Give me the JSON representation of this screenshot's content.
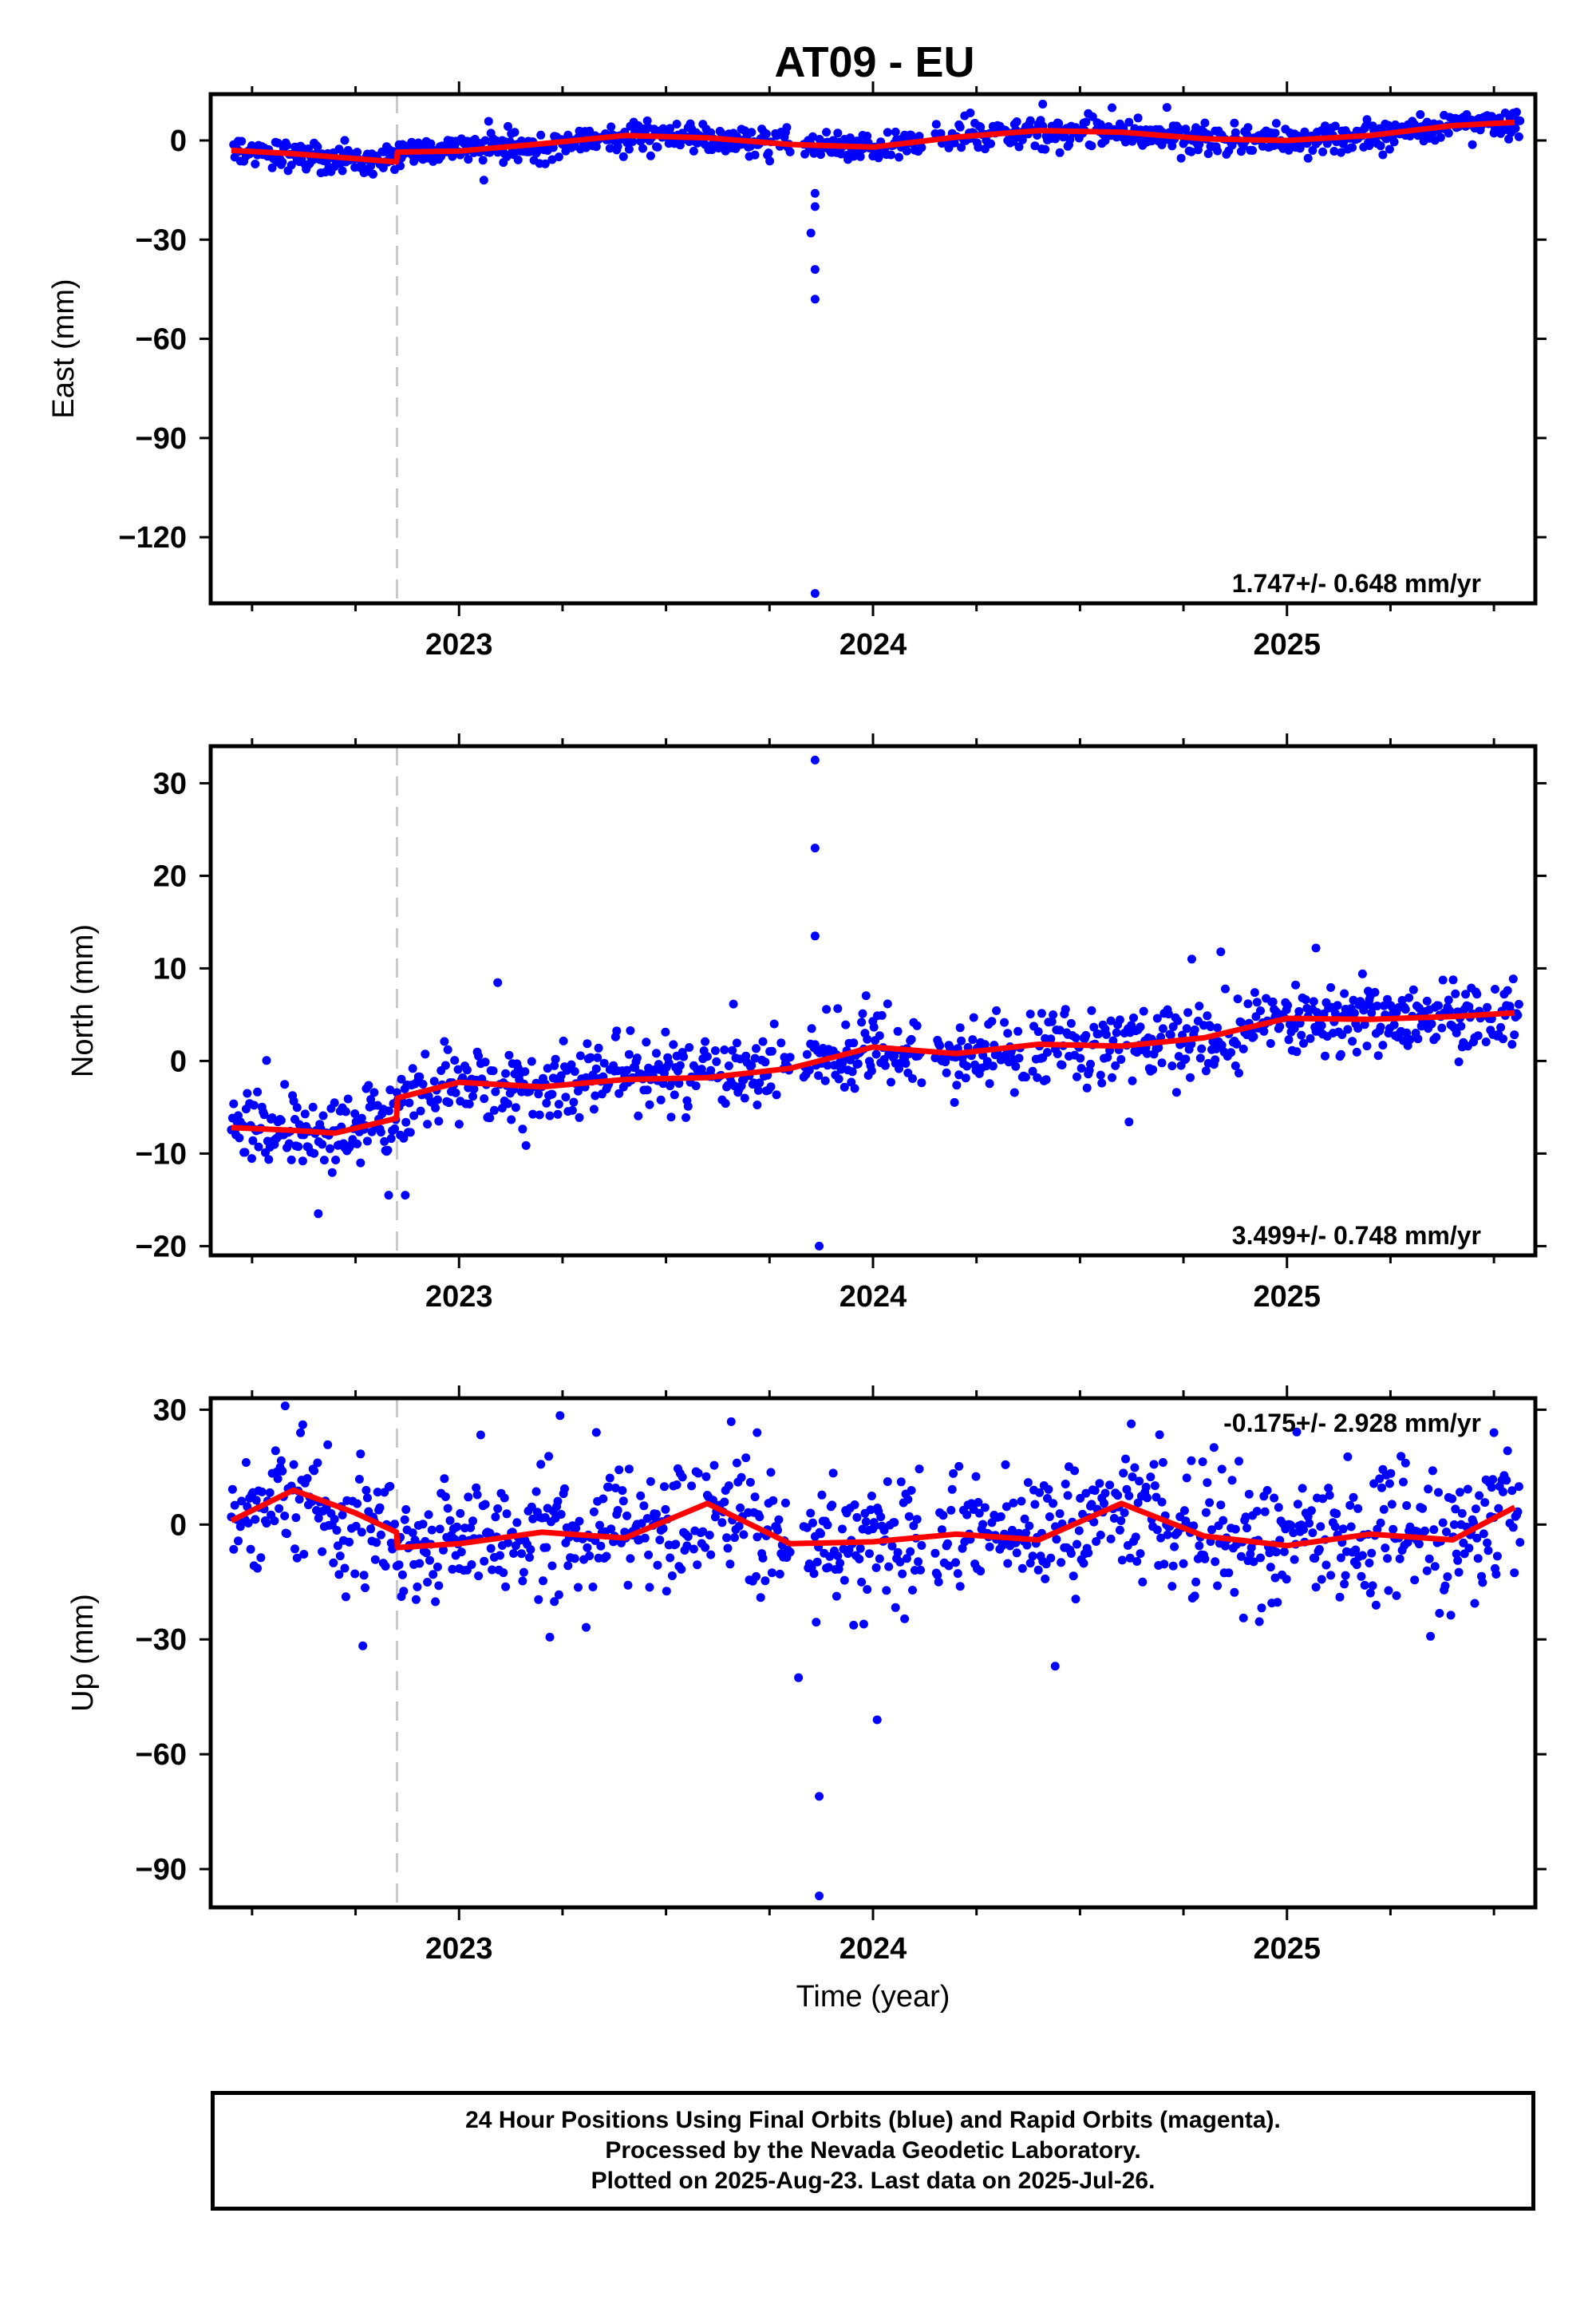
{
  "title": "AT09 - EU",
  "xlabel": "Time (year)",
  "colors": {
    "data": "#0000ff",
    "model": "#ff0000",
    "offset_line": "#c8c8c8",
    "frame": "#000000"
  },
  "chart_data": [
    {
      "type": "scatter",
      "component": "east",
      "ylabel": "East (mm)",
      "ylim": [
        -140,
        14
      ],
      "yticks": [
        0,
        -30,
        -60,
        -90,
        -120
      ],
      "ytick_labels": [
        "0",
        "−30",
        "−60",
        "−90",
        "−120"
      ],
      "xlim": [
        2022.4,
        2025.6
      ],
      "xticks": [
        2023,
        2024,
        2025
      ],
      "xtick_labels": [
        "2023",
        "2024",
        "2025"
      ],
      "velocity": "1.747+/- 0.648 mm/yr",
      "velocity_position": "bottom-right",
      "offset_epoch": 2022.85,
      "model_curve": {
        "x": [
          2022.45,
          2022.6,
          2022.75,
          2022.849,
          2022.851,
          2023.0,
          2023.2,
          2023.4,
          2023.6,
          2023.8,
          2024.0,
          2024.2,
          2024.4,
          2024.6,
          2024.8,
          2025.0,
          2025.2,
          2025.4,
          2025.55
        ],
        "y": [
          -3,
          -4,
          -5.5,
          -6.5,
          -3.5,
          -3.2,
          -1.0,
          1.5,
          0.8,
          -1.2,
          -2.0,
          1.0,
          3.0,
          2.5,
          0.5,
          0.0,
          1.5,
          4.5,
          5.5
        ]
      },
      "outliers": [
        {
          "x": 2023.86,
          "y": -16
        },
        {
          "x": 2023.86,
          "y": -20
        },
        {
          "x": 2023.85,
          "y": -28
        },
        {
          "x": 2023.86,
          "y": -39
        },
        {
          "x": 2023.86,
          "y": -48
        },
        {
          "x": 2023.86,
          "y": -137
        },
        {
          "x": 2023.06,
          "y": -12
        },
        {
          "x": 2024.71,
          "y": 10
        },
        {
          "x": 2024.41,
          "y": 11
        }
      ]
    },
    {
      "type": "scatter",
      "component": "north",
      "ylabel": "North (mm)",
      "ylim": [
        -21,
        34
      ],
      "yticks": [
        30,
        20,
        10,
        0,
        -10,
        -20
      ],
      "ytick_labels": [
        "30",
        "20",
        "10",
        "0",
        "−10",
        "−20"
      ],
      "xlim": [
        2022.4,
        2025.6
      ],
      "xticks": [
        2023,
        2024,
        2025
      ],
      "xtick_labels": [
        "2023",
        "2024",
        "2025"
      ],
      "velocity": "3.499+/- 0.748 mm/yr",
      "velocity_position": "bottom-right",
      "offset_epoch": 2022.85,
      "model_curve": {
        "x": [
          2022.45,
          2022.6,
          2022.7,
          2022.849,
          2022.851,
          2023.0,
          2023.2,
          2023.4,
          2023.6,
          2023.8,
          2024.0,
          2024.2,
          2024.4,
          2024.6,
          2024.8,
          2025.0,
          2025.2,
          2025.4,
          2025.55
        ],
        "y": [
          -7.2,
          -7.5,
          -7.8,
          -6.2,
          -4.0,
          -2.3,
          -2.8,
          -2.0,
          -1.8,
          -0.8,
          1.5,
          0.8,
          1.8,
          1.6,
          2.5,
          4.6,
          4.5,
          4.8,
          5.2
        ]
      },
      "outliers": [
        {
          "x": 2023.86,
          "y": 32.5
        },
        {
          "x": 2023.86,
          "y": 23
        },
        {
          "x": 2023.86,
          "y": 13.5
        },
        {
          "x": 2023.87,
          "y": -20
        },
        {
          "x": 2024.77,
          "y": 11
        },
        {
          "x": 2025.07,
          "y": 12.2
        },
        {
          "x": 2022.87,
          "y": -14.5
        },
        {
          "x": 2022.83,
          "y": -14.5
        },
        {
          "x": 2022.66,
          "y": -16.5
        }
      ]
    },
    {
      "type": "scatter",
      "component": "up",
      "ylabel": "Up (mm)",
      "ylim": [
        -100,
        33
      ],
      "yticks": [
        30,
        0,
        -30,
        -60,
        -90
      ],
      "ytick_labels": [
        "30",
        "0",
        "−30",
        "−60",
        "−90"
      ],
      "xlim": [
        2022.4,
        2025.6
      ],
      "xticks": [
        2023,
        2024,
        2025
      ],
      "xtick_labels": [
        "2023",
        "2024",
        "2025"
      ],
      "velocity": "-0.175+/- 2.928 mm/yr",
      "velocity_position": "top-right",
      "offset_epoch": 2022.85,
      "model_curve": {
        "x": [
          2022.45,
          2022.6,
          2022.75,
          2022.849,
          2022.851,
          2023.0,
          2023.2,
          2023.4,
          2023.6,
          2023.8,
          2024.0,
          2024.2,
          2024.4,
          2024.6,
          2024.8,
          2025.0,
          2025.2,
          2025.4,
          2025.55
        ],
        "y": [
          1,
          9,
          3,
          -2,
          -6,
          -5,
          -2,
          -3.5,
          5.5,
          -5,
          -4.5,
          -2.5,
          -4,
          5.5,
          -3,
          -5.5,
          -2.5,
          -4,
          4.5
        ]
      },
      "outliers": [
        {
          "x": 2022.58,
          "y": 31
        },
        {
          "x": 2023.87,
          "y": -71
        },
        {
          "x": 2023.87,
          "y": -97
        },
        {
          "x": 2024.01,
          "y": -51
        },
        {
          "x": 2024.44,
          "y": -37
        },
        {
          "x": 2023.82,
          "y": -40
        },
        {
          "x": 2025.5,
          "y": 24
        },
        {
          "x": 2023.72,
          "y": 24
        }
      ]
    }
  ],
  "caption": {
    "line1": "24 Hour Positions Using Final Orbits (blue) and Rapid Orbits (magenta).",
    "line2": "Processed by the Nevada Geodetic Laboratory.",
    "line3": "Plotted on 2025-Aug-23. Last data on 2025-Jul-26."
  }
}
